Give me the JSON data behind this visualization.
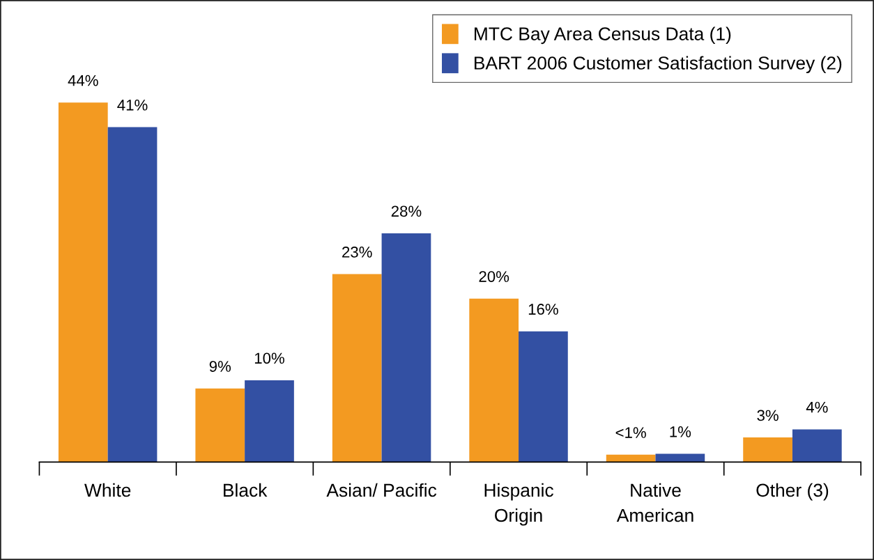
{
  "chart_data": {
    "type": "bar",
    "categories": [
      "White",
      "Black",
      "Asian/ Pacific",
      "Hispanic\nOrigin",
      "Native\nAmerican",
      "Other (3)"
    ],
    "series": [
      {
        "name": "MTC Bay Area Census Data (1)",
        "color": "#f39a21",
        "values": [
          44,
          9,
          23,
          20,
          0.9,
          3
        ],
        "value_labels": [
          "44%",
          "9%",
          "23%",
          "20%",
          "<1%",
          "3%"
        ]
      },
      {
        "name": "BART 2006 Customer Satisfaction Survey (2)",
        "color": "#3350a3",
        "values": [
          41,
          10,
          28,
          16,
          1,
          4
        ],
        "value_labels": [
          "41%",
          "10%",
          "28%",
          "16%",
          "1%",
          "4%"
        ]
      }
    ],
    "legend": "top right",
    "grid": false
  }
}
